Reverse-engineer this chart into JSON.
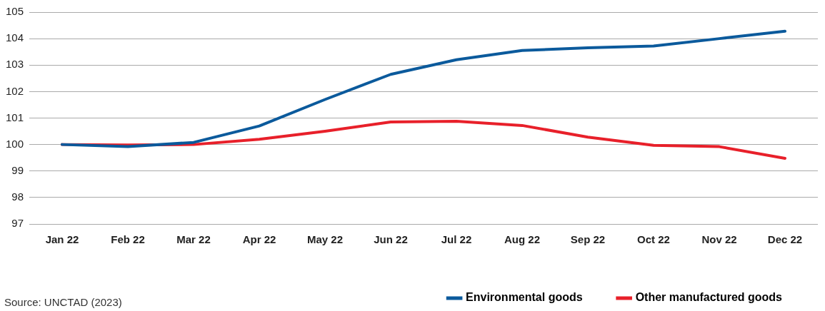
{
  "chart_data": {
    "type": "line",
    "categories": [
      "Jan 22",
      "Feb 22",
      "Mar 22",
      "Apr 22",
      "May 22",
      "Jun 22",
      "Jul 22",
      "Aug 22",
      "Sep 22",
      "Oct 22",
      "Nov 22",
      "Dec 22"
    ],
    "series": [
      {
        "name": "Environmental goods",
        "color": "#0b5a9c",
        "values": [
          100,
          99.92,
          100.08,
          100.7,
          101.7,
          102.65,
          103.2,
          103.55,
          103.65,
          103.72,
          104.0,
          104.28
        ]
      },
      {
        "name": "Other manufactured goods",
        "color": "#e8202a",
        "values": [
          100,
          99.98,
          100.0,
          100.2,
          100.5,
          100.85,
          100.88,
          100.72,
          100.28,
          99.97,
          99.92,
          99.48
        ]
      }
    ],
    "ylim": [
      97,
      105
    ],
    "yticks": [
      97,
      98,
      99,
      100,
      101,
      102,
      103,
      104,
      105
    ],
    "grid": "y",
    "legend": "bottom right",
    "marker": "none",
    "line_style": "solid",
    "annotations": [
      "Source: UNCTAD (2023)"
    ]
  }
}
